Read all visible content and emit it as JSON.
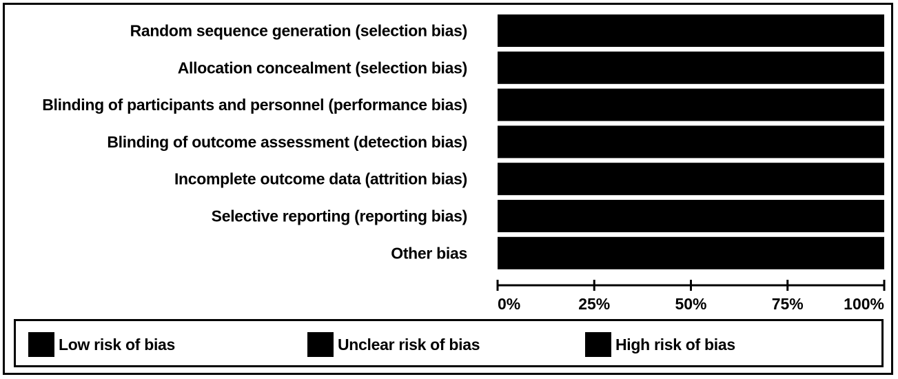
{
  "chart_data": {
    "type": "bar",
    "orientation": "horizontal",
    "stacked": true,
    "categories": [
      "Random sequence generation (selection bias)",
      "Allocation concealment (selection bias)",
      "Blinding of participants and personnel (performance bias)",
      "Blinding of outcome assessment (detection bias)",
      "Incomplete outcome data (attrition bias)",
      "Selective reporting (reporting bias)",
      "Other bias"
    ],
    "series": [
      {
        "name": "Low risk of bias",
        "color": "#000000",
        "values": [
          100,
          100,
          100,
          100,
          100,
          100,
          100
        ]
      },
      {
        "name": "Unclear risk of bias",
        "color": "#000000",
        "values": [
          0,
          0,
          0,
          0,
          0,
          0,
          0
        ]
      },
      {
        "name": "High risk of bias",
        "color": "#000000",
        "values": [
          0,
          0,
          0,
          0,
          0,
          0,
          0
        ]
      }
    ],
    "x_ticks": [
      "0%",
      "25%",
      "50%",
      "75%",
      "100%"
    ],
    "xlim": [
      0,
      100
    ],
    "grid": false,
    "legend_position": "bottom"
  }
}
